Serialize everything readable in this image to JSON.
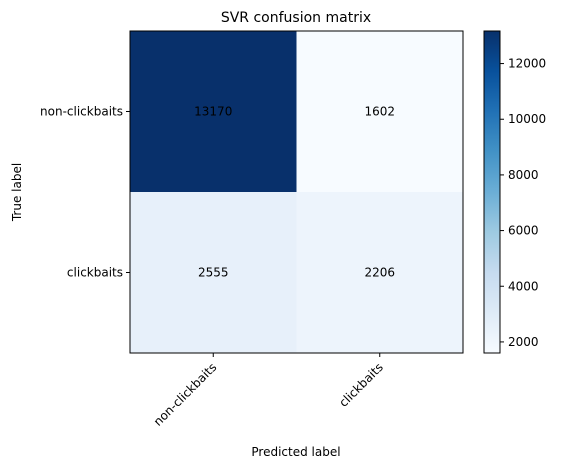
{
  "chart_data": {
    "type": "heatmap",
    "title": "SVR confusion matrix",
    "xlabel": "Predicted label",
    "ylabel": "True label",
    "x_categories": [
      "non-clickbaits",
      "clickbaits"
    ],
    "y_categories": [
      "non-clickbaits",
      "clickbaits"
    ],
    "matrix": [
      [
        13170,
        1602
      ],
      [
        2555,
        2206
      ]
    ],
    "colorbar": {
      "min": 1602,
      "max": 13170,
      "ticks": [
        2000,
        4000,
        6000,
        8000,
        10000,
        12000
      ]
    },
    "colormap": "Blues",
    "colors": {
      "low": "#f7fbff",
      "high": "#08306b"
    }
  }
}
